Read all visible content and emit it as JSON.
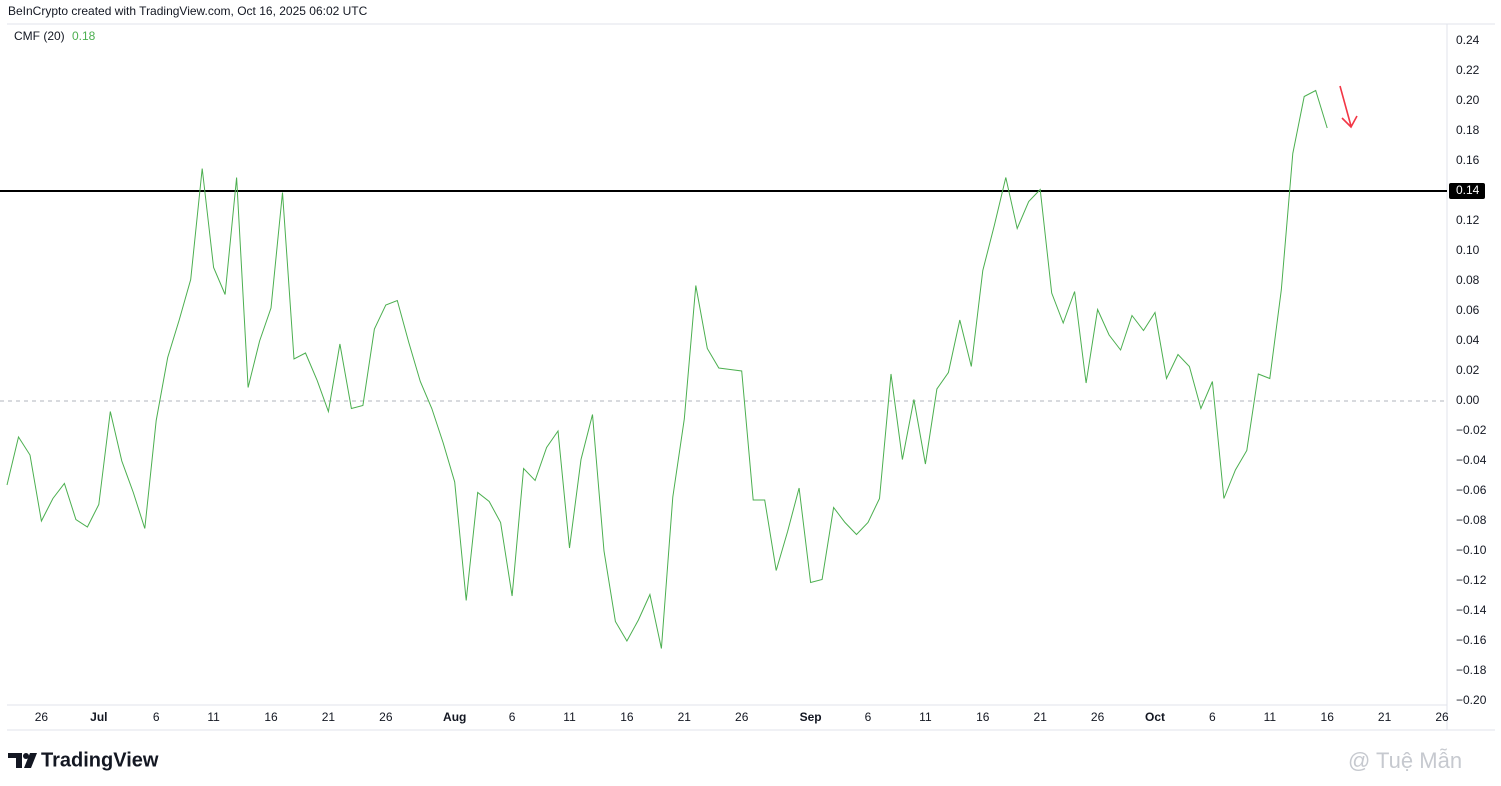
{
  "chart_data": {
    "type": "line",
    "title": "BeInCrypto created with TradingView.com, Oct 16, 2025 06:02 UTC",
    "indicator_value": 0.18,
    "categories": [
      null,
      null,
      null,
      "26",
      null,
      null,
      null,
      null,
      "Jul",
      null,
      null,
      null,
      null,
      "6",
      null,
      null,
      null,
      null,
      "11",
      null,
      null,
      null,
      null,
      "16",
      null,
      null,
      null,
      null,
      "21",
      null,
      null,
      null,
      null,
      "26",
      null,
      null,
      null,
      null,
      null,
      "Aug",
      null,
      null,
      null,
      null,
      "6",
      null,
      null,
      null,
      null,
      "11",
      null,
      null,
      null,
      null,
      "16",
      null,
      null,
      null,
      null,
      "21",
      null,
      null,
      null,
      null,
      "26",
      null,
      null,
      null,
      null,
      null,
      "Sep",
      null,
      null,
      null,
      null,
      "6",
      null,
      null,
      null,
      null,
      "11",
      null,
      null,
      null,
      null,
      "16",
      null,
      null,
      null,
      null,
      "21",
      null,
      null,
      null,
      null,
      "26",
      null,
      null,
      null,
      null,
      "Oct",
      null,
      null,
      null,
      null,
      "6",
      null,
      null,
      null,
      null,
      "11",
      null,
      null,
      null,
      null,
      "16",
      null,
      null,
      null,
      null,
      "21",
      null,
      null,
      null,
      null,
      "26"
    ],
    "series": [
      {
        "name": "CMF (20)",
        "color": "#4caf50",
        "values": [
          -0.056,
          -0.024,
          -0.036,
          -0.08,
          -0.065,
          -0.055,
          -0.079,
          -0.084,
          -0.069,
          -0.007,
          -0.04,
          -0.061,
          -0.085,
          -0.013,
          0.029,
          0.054,
          0.081,
          0.155,
          0.089,
          0.071,
          0.149,
          0.009,
          0.04,
          0.062,
          0.139,
          0.028,
          0.032,
          0.014,
          -0.007,
          0.038,
          -0.005,
          -0.003,
          0.048,
          0.064,
          0.067,
          0.039,
          0.013,
          -0.005,
          -0.028,
          -0.054,
          -0.133,
          -0.061,
          -0.067,
          -0.081,
          -0.13,
          -0.045,
          -0.053,
          -0.031,
          -0.02,
          -0.098,
          -0.039,
          -0.009,
          -0.1,
          -0.147,
          -0.16,
          -0.146,
          -0.129,
          -0.165,
          -0.064,
          -0.012,
          0.077,
          0.035,
          0.022,
          0.021,
          0.02,
          -0.066,
          -0.066,
          -0.113,
          -0.087,
          -0.058,
          -0.121,
          -0.119,
          -0.071,
          -0.081,
          -0.089,
          -0.081,
          -0.065,
          0.018,
          -0.039,
          0.001,
          -0.042,
          0.008,
          0.019,
          0.054,
          0.023,
          0.087,
          0.117,
          0.149,
          0.115,
          0.133,
          0.141,
          0.072,
          0.052,
          0.073,
          0.012,
          0.061,
          0.044,
          0.034,
          0.057,
          0.047,
          0.059,
          0.015,
          0.031,
          0.023,
          -0.005,
          0.013,
          -0.065,
          -0.046,
          -0.033,
          0.018,
          0.015,
          0.074,
          0.165,
          0.203,
          0.207,
          0.182,
          null,
          null,
          null,
          null,
          null,
          null,
          null,
          null,
          null,
          null
        ]
      }
    ],
    "ylim": [
      -0.2,
      0.24
    ],
    "yticks": [
      0.24,
      0.22,
      {
        "value": 0.2,
        "label": "0.20"
      },
      0.18,
      0.16,
      0.14,
      0.12,
      {
        "value": 0.1,
        "label": "0.10"
      },
      0.08,
      0.06,
      0.04,
      0.02,
      {
        "value": 0,
        "label": "0.00"
      },
      {
        "value": -0.02,
        "label": "−0.02"
      },
      {
        "value": -0.04,
        "label": "−0.04"
      },
      {
        "value": -0.06,
        "label": "−0.06"
      },
      {
        "value": -0.08,
        "label": "−0.08"
      },
      {
        "value": -0.1,
        "label": "−0.10"
      },
      {
        "value": -0.12,
        "label": "−0.12"
      },
      {
        "value": -0.14,
        "label": "−0.14"
      },
      {
        "value": -0.16,
        "label": "−0.16"
      },
      {
        "value": -0.18,
        "label": "−0.18"
      },
      {
        "value": -0.2,
        "label": "−0.20"
      }
    ],
    "grid": false,
    "zero_line": true,
    "hline": 0.14,
    "brand": "TradingView",
    "watermark": "@ Tuệ Mẫn"
  }
}
